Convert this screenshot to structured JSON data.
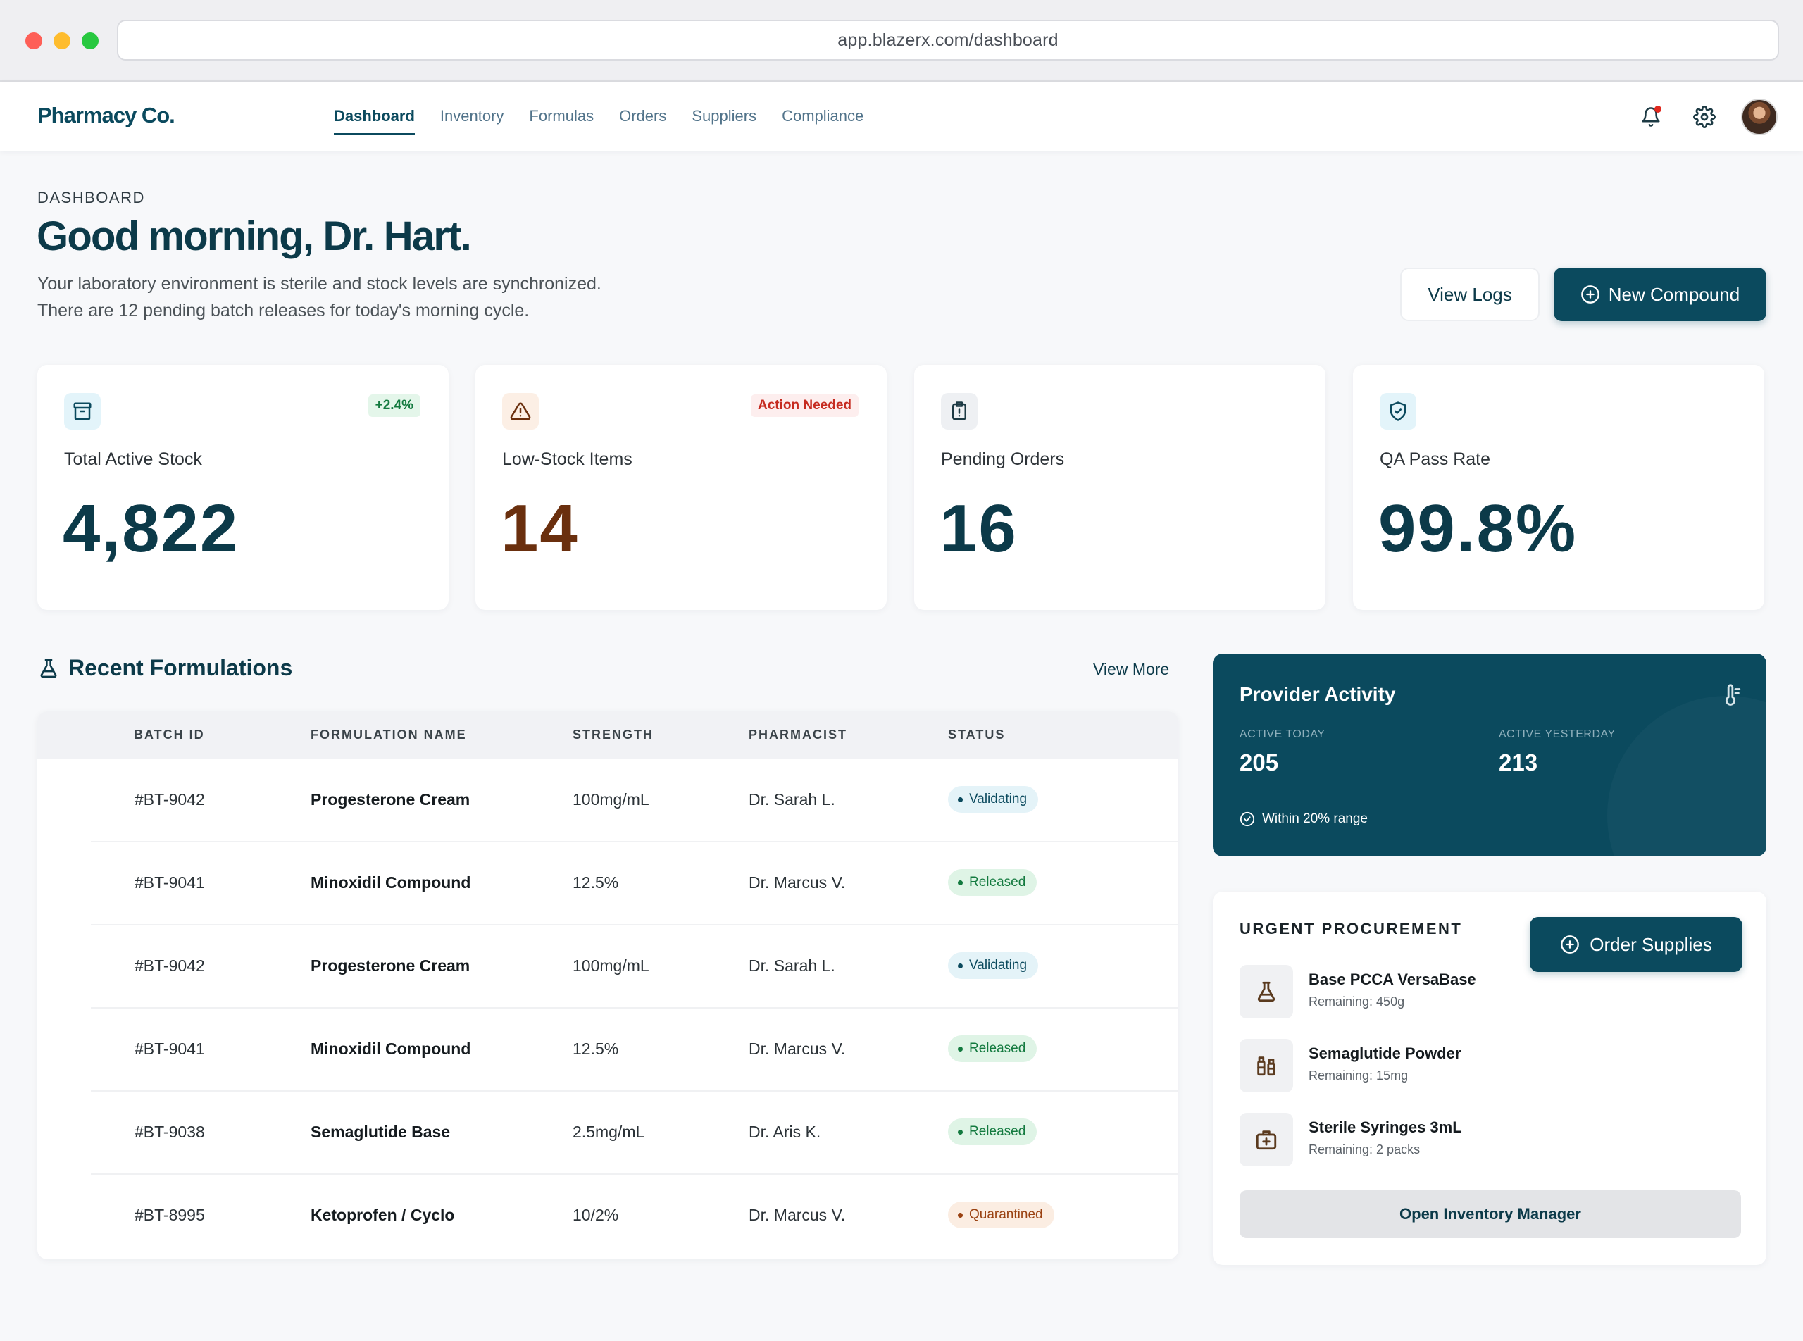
{
  "browser": {
    "url": "app.blazerx.com/dashboard"
  },
  "nav": {
    "logo": "Pharmacy Co.",
    "links": [
      "Dashboard",
      "Inventory",
      "Formulas",
      "Orders",
      "Suppliers",
      "Compliance"
    ],
    "active": "Dashboard"
  },
  "header": {
    "eyebrow": "DASHBOARD",
    "title": "Good morning, Dr. Hart.",
    "subtitle_line1": "Your laboratory environment is sterile and stock levels are synchronized.",
    "subtitle_line2": "There are 12 pending batch releases for today's morning cycle.",
    "view_logs": "View Logs",
    "new_compound": "New Compound"
  },
  "stats": [
    {
      "label": "Total Active Stock",
      "value": "4,822",
      "badge": "+2.4%",
      "icon": "archive-icon",
      "accent": "#0c3a49"
    },
    {
      "label": "Low-Stock Items",
      "value": "14",
      "badge": "Action Needed",
      "icon": "warning-icon",
      "accent": "#6a2f0e"
    },
    {
      "label": "Pending Orders",
      "value": "16",
      "badge": "",
      "icon": "clipboard-alert-icon",
      "accent": "#0c3a49"
    },
    {
      "label": "QA Pass Rate",
      "value": "99.8%",
      "badge": "",
      "icon": "shield-check-icon",
      "accent": "#0c3a49"
    }
  ],
  "formulations": {
    "title": "Recent Formulations",
    "view_more": "View More",
    "columns": [
      "BATCH ID",
      "FORMULATION NAME",
      "STRENGTH",
      "PHARMACIST",
      "STATUS"
    ],
    "rows": [
      {
        "id": "#BT-9042",
        "name": "Progesterone Cream",
        "strength": "100mg/mL",
        "pharmacist": "Dr. Sarah L.",
        "status": "Validating"
      },
      {
        "id": "#BT-9041",
        "name": "Minoxidil Compound",
        "strength": "12.5%",
        "pharmacist": "Dr. Marcus V.",
        "status": "Released"
      },
      {
        "id": "#BT-9042",
        "name": "Progesterone Cream",
        "strength": "100mg/mL",
        "pharmacist": "Dr. Sarah L.",
        "status": "Validating"
      },
      {
        "id": "#BT-9041",
        "name": "Minoxidil Compound",
        "strength": "12.5%",
        "pharmacist": "Dr. Marcus V.",
        "status": "Released"
      },
      {
        "id": "#BT-9038",
        "name": "Semaglutide Base",
        "strength": "2.5mg/mL",
        "pharmacist": "Dr. Aris K.",
        "status": "Released"
      },
      {
        "id": "#BT-8995",
        "name": "Ketoprofen / Cyclo",
        "strength": "10/2%",
        "pharmacist": "Dr. Marcus V.",
        "status": "Quarantined"
      }
    ]
  },
  "provider": {
    "title": "Provider Activity",
    "today_label": "ACTIVE TODAY",
    "today_value": "205",
    "yesterday_label": "ACTIVE YESTERDAY",
    "yesterday_value": "213",
    "note": "Within 20% range"
  },
  "procurement": {
    "title": "URGENT PROCUREMENT",
    "order_button": "Order Supplies",
    "items": [
      {
        "name": "Base PCCA VersaBase",
        "remaining": "Remaining: 450g",
        "icon": "flask-icon"
      },
      {
        "name": "Semaglutide Powder",
        "remaining": "Remaining: 15mg",
        "icon": "vials-icon"
      },
      {
        "name": "Sterile Syringes 3mL",
        "remaining": "Remaining: 2 packs",
        "icon": "medkit-icon"
      }
    ],
    "open_manager": "Open Inventory Manager"
  },
  "colors": {
    "brand": "#0b4a5e",
    "released": "#137a3f",
    "quarantined": "#9a4212",
    "alert": "#c62b20"
  }
}
